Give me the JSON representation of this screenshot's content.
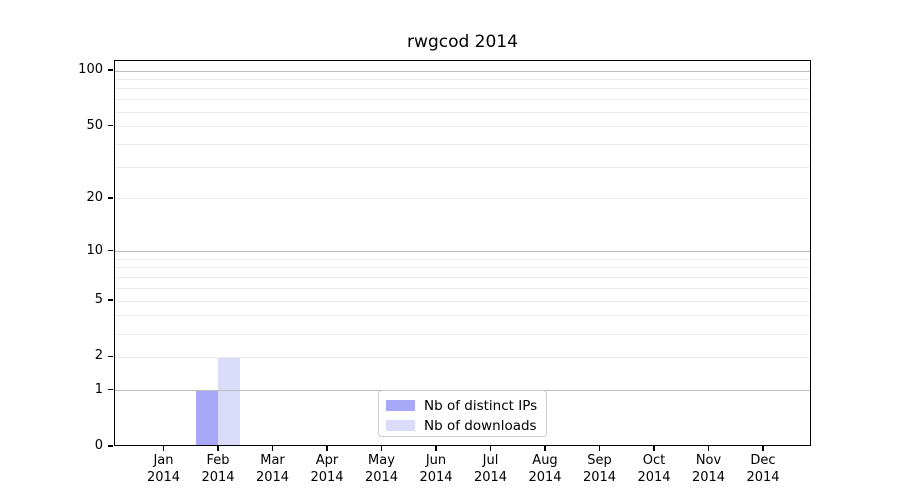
{
  "chart_data": {
    "type": "bar",
    "title": "rwgcod 2014",
    "x_tick_months": [
      "Jan",
      "Feb",
      "Mar",
      "Apr",
      "May",
      "Jun",
      "Jul",
      "Aug",
      "Sep",
      "Oct",
      "Nov",
      "Dec"
    ],
    "x_tick_year": "2014",
    "xlabel": "",
    "ylabel": "",
    "y_scale": "log10(1+y)",
    "y_ticks": [
      0,
      1,
      2,
      5,
      10,
      20,
      50,
      100
    ],
    "ylim": [
      0,
      115
    ],
    "grid": {
      "major_values": [
        1,
        10,
        100
      ],
      "minor_values": [
        2,
        3,
        4,
        5,
        6,
        7,
        8,
        9,
        20,
        30,
        40,
        50,
        60,
        70,
        80,
        90
      ],
      "major_color": "#bdbdbd",
      "minor_color": "#ebebeb"
    },
    "series": [
      {
        "name": "Nb of distinct IPs",
        "color": "#a8a8f8",
        "values": [
          0,
          1,
          0,
          0,
          0,
          0,
          0,
          0,
          0,
          0,
          0,
          0
        ]
      },
      {
        "name": "Nb of downloads",
        "color": "#dbdbfa",
        "values": [
          0,
          2,
          0,
          0,
          0,
          0,
          0,
          0,
          0,
          0,
          0,
          0
        ]
      }
    ],
    "legend_position": "lower center"
  }
}
